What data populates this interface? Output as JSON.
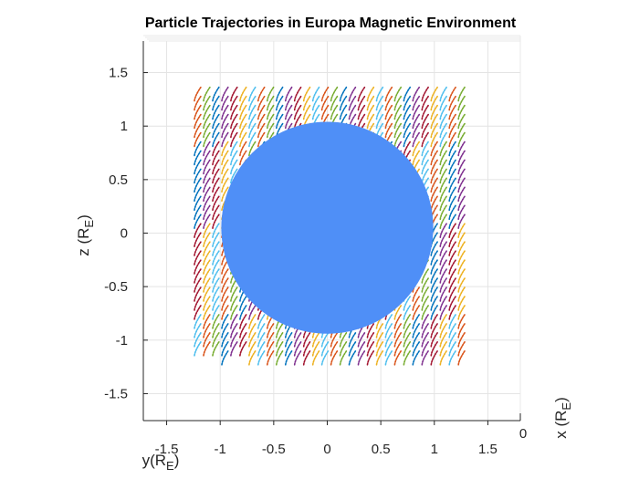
{
  "chart_data": {
    "type": "scatter",
    "title": "Particle Trajectories in Europa Magnetic Environment",
    "xlabel": "y(R_E)",
    "ylabel": "z (R_E)",
    "zlabel": "x (R_E)",
    "xlim": [
      -1.75,
      1.75
    ],
    "ylim": [
      -1.75,
      1.75
    ],
    "x_ticks": [
      -1.5,
      -1,
      -0.5,
      0,
      0.5,
      1,
      1.5
    ],
    "x_tick_labels": [
      "-1.5",
      "-1",
      "-0.5",
      "0",
      "0.5",
      "1",
      "1.5"
    ],
    "y_ticks": [
      -1.5,
      -1,
      -0.5,
      0,
      0.5,
      1,
      1.5
    ],
    "y_tick_labels": [
      "-1.5",
      "-1",
      "-0.5",
      "0",
      "0.5",
      "1",
      "1.5"
    ],
    "z_tick_label": "0",
    "grid": true,
    "body": {
      "name": "Europa",
      "center": [
        0,
        0.05
      ],
      "radius": 0.99,
      "color": "#4f8ff7"
    },
    "trajectory_grid": {
      "x_start": -1.24,
      "x_end": 1.26,
      "z_start": -1.23,
      "z_end": 1.3,
      "step": 0.085,
      "dy": 0.06,
      "dz": 0.13
    },
    "series_colors": [
      "#0072BD",
      "#D95319",
      "#EDB120",
      "#7E2F8E",
      "#77AC30",
      "#4DBEEE",
      "#A2142F"
    ]
  }
}
